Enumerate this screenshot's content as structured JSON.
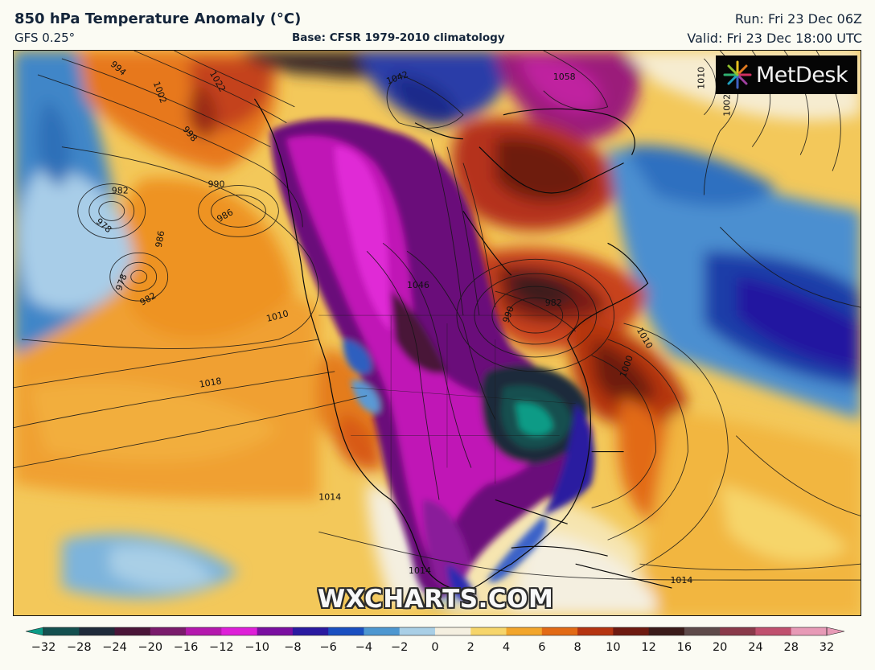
{
  "header": {
    "title": "850 hPa Temperature Anomaly (°C)",
    "model": "GFS 0.25°",
    "base": "Base: CFSR 1979-2010 climatology",
    "run": "Run: Fri 23 Dec 06Z",
    "valid": "Valid: Fri 23 Dec 18:00 UTC"
  },
  "logo": {
    "text": "MetDesk",
    "icon": "metdesk-starburst-icon"
  },
  "watermark": "WXCHARTS.COM",
  "isobar_labels": [
    "994",
    "1002",
    "1022",
    "998",
    "990",
    "982",
    "978",
    "986",
    "986",
    "978",
    "982",
    "1010",
    "1018",
    "1042",
    "1058",
    "1010",
    "1002",
    "1046",
    "990",
    "982",
    "1010",
    "1000",
    "1014",
    "1014",
    "1014"
  ],
  "colorbar": {
    "ticks": [
      "−32",
      "−28",
      "−24",
      "−20",
      "−16",
      "−12",
      "−10",
      "−8",
      "−6",
      "−4",
      "−2",
      "0",
      "2",
      "4",
      "6",
      "8",
      "10",
      "12",
      "16",
      "20",
      "24",
      "28",
      "32"
    ],
    "colors": [
      "#0b9b86",
      "#14504f",
      "#1f2b3a",
      "#4a1538",
      "#7a1b6c",
      "#b418ad",
      "#de1fd8",
      "#7a0ea0",
      "#2a1aa0",
      "#1a4fc0",
      "#4d97d0",
      "#a9cfe6",
      "#f4efe0",
      "#f6d56a",
      "#f2a52a",
      "#e26a14",
      "#b53410",
      "#6e1a10",
      "#3b1b1a",
      "#5e4a4a",
      "#8a3a4a",
      "#c0506e",
      "#e79ab6"
    ]
  }
}
